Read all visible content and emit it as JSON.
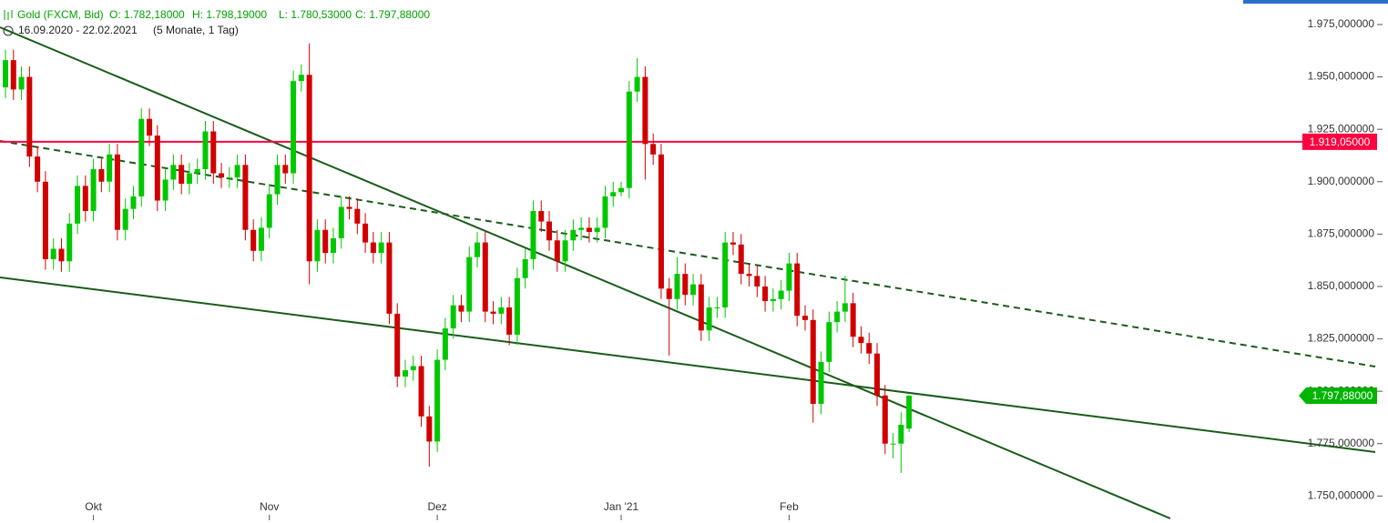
{
  "chart_data": {
    "type": "candlestick",
    "title": "Gold (FXCM, Bid)",
    "ohlc_labels": [
      "O: 1.782,18000",
      "H: 1.798,19000",
      "L: 1.780,53000",
      "C: 1.797,88000"
    ],
    "subtitle": [
      "16.09.2020 - 22.02.2021",
      "(5 Monate, 1 Tag)"
    ],
    "categories": [
      null,
      null,
      null,
      null,
      null,
      null,
      null,
      null,
      null,
      null,
      null,
      "Okt",
      null,
      null,
      null,
      null,
      null,
      null,
      null,
      null,
      null,
      null,
      null,
      null,
      null,
      null,
      null,
      null,
      null,
      null,
      null,
      null,
      null,
      "Nov",
      null,
      null,
      null,
      null,
      null,
      null,
      null,
      null,
      null,
      null,
      null,
      null,
      null,
      null,
      null,
      null,
      null,
      null,
      null,
      null,
      "Dez",
      null,
      null,
      null,
      null,
      null,
      null,
      null,
      null,
      null,
      null,
      null,
      null,
      null,
      null,
      null,
      null,
      null,
      null,
      null,
      null,
      null,
      null,
      "Jan '21",
      null,
      null,
      null,
      null,
      null,
      null,
      null,
      null,
      null,
      null,
      null,
      null,
      null,
      null,
      null,
      null,
      null,
      null,
      null,
      null,
      "Feb",
      null,
      null,
      null,
      null,
      null,
      null,
      null,
      null,
      null,
      null,
      null,
      null,
      null,
      null,
      null
    ],
    "open": [
      1945,
      1958,
      1944,
      1950,
      1912,
      1900,
      1863,
      1868,
      1862,
      1880,
      1898,
      1886,
      1906,
      1900,
      1913,
      1877,
      1887,
      1893,
      1930,
      1922,
      1891,
      1901,
      1908,
      1899,
      1904,
      1906,
      1924,
      1904,
      1902,
      1902,
      1908,
      1877,
      1867,
      1878,
      1894,
      1908,
      1904,
      1948,
      1951,
      1862,
      1877,
      1866,
      1873,
      1888,
      1887,
      1880,
      1871,
      1866,
      1871,
      1837,
      1807,
      1810,
      1812,
      1788,
      1776,
      1815,
      1830,
      1841,
      1838,
      1864,
      1871,
      1838,
      1837,
      1840,
      1827,
      1854,
      1863,
      1886,
      1881,
      1872,
      1862,
      1872,
      1877,
      1878,
      1876,
      1878,
      1893,
      1895,
      1897,
      1943,
      1950,
      1918,
      1913,
      1849,
      1844,
      1856,
      1846,
      1851,
      1829,
      1840,
      1840,
      1871,
      1870,
      1856,
      1855,
      1850,
      1843,
      1844,
      1848,
      1861,
      1836,
      1834,
      1794,
      1814,
      1833,
      1838,
      1842,
      1826,
      1823,
      1818,
      1798,
      1775,
      1775,
      1782.18
    ],
    "high": [
      1963,
      1963,
      1955,
      1955,
      1917,
      1905,
      1873,
      1873,
      1885,
      1903,
      1903,
      1911,
      1911,
      1918,
      1918,
      1892,
      1898,
      1935,
      1935,
      1927,
      1906,
      1913,
      1913,
      1909,
      1911,
      1929,
      1929,
      1909,
      1907,
      1913,
      1913,
      1882,
      1883,
      1899,
      1913,
      1913,
      1953,
      1956,
      1966,
      1882,
      1882,
      1878,
      1893,
      1893,
      1892,
      1885,
      1876,
      1876,
      1876,
      1842,
      1815,
      1817,
      1817,
      1793,
      1820,
      1835,
      1846,
      1846,
      1869,
      1876,
      1876,
      1843,
      1845,
      1845,
      1859,
      1868,
      1891,
      1891,
      1886,
      1877,
      1877,
      1882,
      1883,
      1883,
      1883,
      1898,
      1900,
      1900,
      1948,
      1959,
      1955,
      1923,
      1918,
      1854,
      1864,
      1861,
      1856,
      1856,
      1845,
      1845,
      1876,
      1876,
      1875,
      1861,
      1860,
      1855,
      1849,
      1853,
      1866,
      1866,
      1841,
      1839,
      1819,
      1838,
      1843,
      1855,
      1847,
      1831,
      1828,
      1823,
      1803,
      1780,
      1790,
      1798.19
    ],
    "low": [
      1940,
      1939,
      1939,
      1907,
      1895,
      1858,
      1858,
      1857,
      1857,
      1875,
      1881,
      1881,
      1895,
      1895,
      1872,
      1872,
      1882,
      1888,
      1917,
      1886,
      1886,
      1896,
      1894,
      1894,
      1899,
      1901,
      1899,
      1897,
      1897,
      1897,
      1872,
      1862,
      1862,
      1873,
      1889,
      1899,
      1899,
      1943,
      1851,
      1857,
      1861,
      1861,
      1868,
      1882,
      1875,
      1866,
      1861,
      1861,
      1832,
      1802,
      1802,
      1805,
      1783,
      1764,
      1771,
      1810,
      1825,
      1833,
      1833,
      1859,
      1833,
      1832,
      1832,
      1822,
      1822,
      1849,
      1858,
      1876,
      1867,
      1857,
      1857,
      1867,
      1872,
      1871,
      1871,
      1873,
      1888,
      1893,
      1892,
      1938,
      1901,
      1908,
      1844,
      1817,
      1839,
      1841,
      1841,
      1824,
      1824,
      1835,
      1835,
      1865,
      1851,
      1850,
      1845,
      1838,
      1838,
      1839,
      1843,
      1831,
      1829,
      1785,
      1789,
      1809,
      1828,
      1833,
      1821,
      1818,
      1813,
      1793,
      1770,
      1768,
      1761,
      1780.53
    ],
    "close": [
      1958,
      1944,
      1950,
      1912,
      1900,
      1863,
      1868,
      1862,
      1880,
      1898,
      1886,
      1906,
      1900,
      1913,
      1877,
      1887,
      1893,
      1930,
      1922,
      1891,
      1901,
      1908,
      1899,
      1904,
      1906,
      1924,
      1904,
      1902,
      1902,
      1908,
      1877,
      1867,
      1878,
      1894,
      1908,
      1904,
      1948,
      1951,
      1862,
      1877,
      1866,
      1873,
      1888,
      1887,
      1880,
      1871,
      1866,
      1871,
      1837,
      1807,
      1810,
      1812,
      1788,
      1776,
      1815,
      1830,
      1841,
      1838,
      1864,
      1871,
      1838,
      1837,
      1840,
      1827,
      1854,
      1863,
      1886,
      1881,
      1872,
      1862,
      1872,
      1877,
      1878,
      1876,
      1878,
      1893,
      1895,
      1897,
      1943,
      1950,
      1918,
      1913,
      1849,
      1844,
      1856,
      1846,
      1851,
      1829,
      1840,
      1840,
      1871,
      1870,
      1856,
      1855,
      1850,
      1843,
      1844,
      1848,
      1861,
      1836,
      1834,
      1794,
      1814,
      1833,
      1838,
      1842,
      1826,
      1823,
      1818,
      1798,
      1775,
      1775,
      1784,
      1797.88
    ],
    "up_color": "#00c800",
    "down_color": "#d00000",
    "ylim": [
      1739.3,
      1986.7
    ],
    "yticks": [
      {
        "value": 1750,
        "label": "1.750,000000"
      },
      {
        "value": 1775,
        "label": "1.775,000000"
      },
      {
        "value": 1800,
        "label": "1.800,000000"
      },
      {
        "value": 1825,
        "label": "1.825,000000"
      },
      {
        "value": 1850,
        "label": "1.850,000000"
      },
      {
        "value": 1875,
        "label": "1.875,000000"
      },
      {
        "value": 1900,
        "label": "1.900,000000"
      },
      {
        "value": 1925,
        "label": "1.925,000000"
      },
      {
        "value": 1950,
        "label": "1.950,000000"
      },
      {
        "value": 1975,
        "label": "1.975,000000"
      }
    ],
    "hline": {
      "value": 1919.05,
      "label": "1.919,05000",
      "color": "#ff0040"
    },
    "last_price": {
      "value": 1797.88,
      "label": "1.797,88000",
      "color": "#00b400"
    }
  }
}
